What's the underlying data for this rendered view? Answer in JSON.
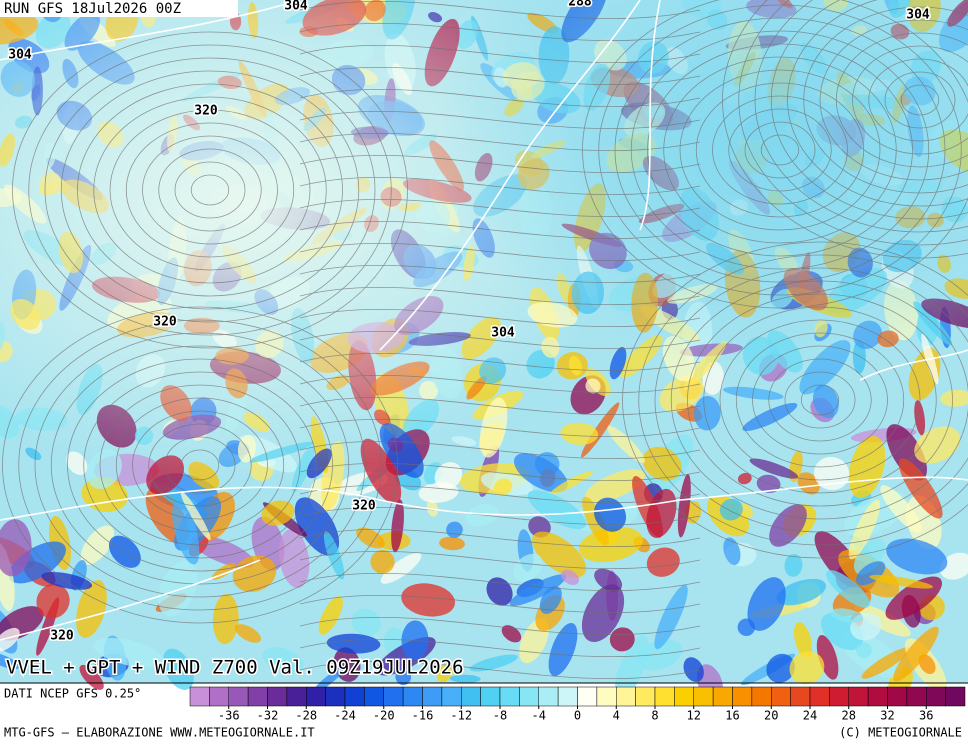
{
  "header": {
    "run": "RUN GFS 18Jul2026 00Z"
  },
  "map": {
    "contour_labels": [
      "304",
      "304",
      "288",
      "304",
      "320",
      "320",
      "304",
      "320",
      "320"
    ],
    "field_title": "VVEL + GPT + WIND Z700 Val. 09Z19JUL2026"
  },
  "legend": {
    "source": "DATI NCEP GFS 0.25°",
    "min": -40,
    "max": 40,
    "ticks": [
      -36,
      -32,
      -28,
      -24,
      -20,
      -16,
      -12,
      -8,
      -4,
      0,
      4,
      8,
      12,
      16,
      20,
      24,
      28,
      32,
      36
    ],
    "colors": [
      "#c890d8",
      "#b070c8",
      "#9858b8",
      "#8040a8",
      "#6a2c98",
      "#4a2098",
      "#3020a8",
      "#1c30c0",
      "#1040d4",
      "#1058e4",
      "#2070f0",
      "#2e88f4",
      "#3c9cf6",
      "#48b0f8",
      "#40c0f0",
      "#50d0f2",
      "#68dcf4",
      "#88e6f4",
      "#a8eef4",
      "#ccf6f8",
      "#fffff4",
      "#fffcc0",
      "#fff498",
      "#ffea60",
      "#ffe030",
      "#fcd000",
      "#f8c000",
      "#f8a800",
      "#f89000",
      "#f47800",
      "#f06010",
      "#e84820",
      "#e03028",
      "#d01c30",
      "#c01438",
      "#b00c40",
      "#a00848",
      "#900850",
      "#800858",
      "#700860"
    ]
  },
  "footer": {
    "left": "MTG-GFS — ELABORAZIONE WWW.METEOGIORNALE.IT",
    "right": "(C) METEOGIORNALE"
  }
}
